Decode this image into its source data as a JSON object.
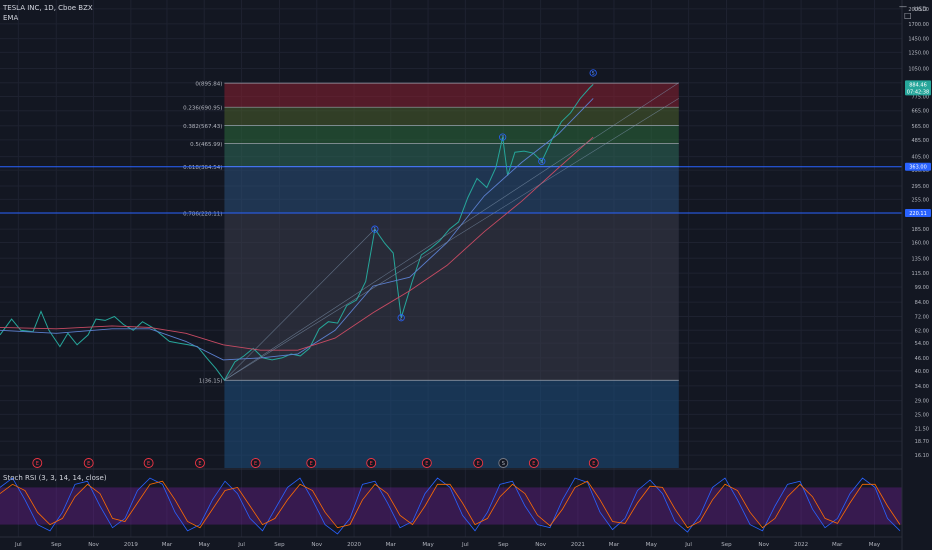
{
  "header": {
    "symbol_line": "TESLA INC, 1D, Cboe BZX",
    "indicator": "EMA",
    "currency": "USD",
    "minimize": "—",
    "maximize": "□"
  },
  "stoch": {
    "label": "Stoch RSI (3, 3, 14, 14, close)",
    "ticks": [
      "75.00",
      "50.00",
      "25.00",
      "0.00"
    ],
    "band_upper": 80,
    "band_lower": 20
  },
  "price_axis": {
    "ticks": [
      "2000.00",
      "1700.00",
      "1450.00",
      "1250.00",
      "1050.00",
      "900.00",
      "775.00",
      "665.00",
      "565.00",
      "485.00",
      "405.00",
      "350.00",
      "295.00",
      "255.00",
      "220.00",
      "185.00",
      "160.00",
      "135.00",
      "115.00",
      "99.00",
      "84.00",
      "72.00",
      "62.00",
      "54.00",
      "46.00",
      "40.00",
      "34.00",
      "29.00",
      "25.00",
      "21.50",
      "18.70",
      "16.10"
    ],
    "badges": [
      {
        "text": "884.46",
        "price": 884,
        "color": "#26a69a"
      },
      {
        "text": "07:42:38",
        "price": 820,
        "color": "#26a69a"
      },
      {
        "text": "363.00",
        "price": 363,
        "color": "#2962ff"
      },
      {
        "text": "220.11",
        "price": 220.11,
        "color": "#2962ff"
      }
    ]
  },
  "time_axis": {
    "labels": [
      "Jul",
      "Sep",
      "Nov",
      "2019",
      "Mar",
      "May",
      "Jul",
      "Sep",
      "Nov",
      "2020",
      "Mar",
      "May",
      "Jul",
      "Sep",
      "Nov",
      "2021",
      "Mar",
      "May",
      "Jul",
      "Sep",
      "Nov",
      "2022",
      "Mar",
      "May"
    ]
  },
  "fib": {
    "levels": [
      {
        "label": "0(895.84)",
        "price": 895.84
      },
      {
        "label": "0.236(690.95)",
        "price": 690.95
      },
      {
        "label": "0.382(567.43)",
        "price": 567.43
      },
      {
        "label": "0.5(465.99)",
        "price": 465.99
      },
      {
        "label": "0.618(364.54)",
        "price": 364.54
      },
      {
        "label": "0.786(220.11)",
        "price": 220.11
      },
      {
        "label": "1(36.15)",
        "price": 36.15
      }
    ],
    "start_label": "Jun 2019",
    "end_label": "Jun 2021"
  },
  "waves": [
    {
      "label": "1",
      "date": "2020-02-04",
      "price": 185
    },
    {
      "label": "2",
      "date": "2020-03-18",
      "price": 71
    },
    {
      "label": "3",
      "date": "2020-08-31",
      "price": 500
    },
    {
      "label": "4",
      "date": "2020-11-03",
      "price": 385
    },
    {
      "label": "5",
      "date": "2021-01-26",
      "price": 1000
    }
  ],
  "earnings": {
    "marker": "E",
    "special": "S",
    "dates": [
      "2018-08-01",
      "2018-10-24",
      "2019-01-30",
      "2019-04-24",
      "2019-07-24",
      "2019-10-23",
      "2020-01-29",
      "2020-04-29",
      "2020-07-22",
      "2020-09-01",
      "2020-10-21",
      "2021-01-27"
    ]
  },
  "chart_data": {
    "type": "line",
    "title": "TESLA INC, 1D, Cboe BZX",
    "scale": "log",
    "y_unit": "USD",
    "xlim": [
      "2018-06-01",
      "2022-06-15"
    ],
    "ylim": [
      14,
      2200
    ],
    "series": [
      {
        "name": "TSLA",
        "color": "#26a69a",
        "points": [
          [
            "2018-06-01",
            59
          ],
          [
            "2018-06-20",
            70
          ],
          [
            "2018-07-05",
            62
          ],
          [
            "2018-07-25",
            61
          ],
          [
            "2018-08-07",
            76
          ],
          [
            "2018-08-20",
            62
          ],
          [
            "2018-09-07",
            52
          ],
          [
            "2018-09-20",
            60
          ],
          [
            "2018-10-05",
            53
          ],
          [
            "2018-10-23",
            59
          ],
          [
            "2018-11-05",
            70
          ],
          [
            "2018-11-20",
            69
          ],
          [
            "2018-12-05",
            72
          ],
          [
            "2018-12-20",
            66
          ],
          [
            "2019-01-05",
            62
          ],
          [
            "2019-01-20",
            68
          ],
          [
            "2019-02-05",
            64
          ],
          [
            "2019-02-20",
            59
          ],
          [
            "2019-03-05",
            55
          ],
          [
            "2019-03-20",
            54
          ],
          [
            "2019-04-05",
            53
          ],
          [
            "2019-04-20",
            52
          ],
          [
            "2019-05-05",
            46
          ],
          [
            "2019-05-20",
            41
          ],
          [
            "2019-06-03",
            36.15
          ],
          [
            "2019-06-20",
            44
          ],
          [
            "2019-07-05",
            47
          ],
          [
            "2019-07-20",
            51
          ],
          [
            "2019-08-05",
            46
          ],
          [
            "2019-08-20",
            45
          ],
          [
            "2019-09-05",
            46
          ],
          [
            "2019-09-20",
            48
          ],
          [
            "2019-10-05",
            47
          ],
          [
            "2019-10-20",
            51
          ],
          [
            "2019-11-05",
            63
          ],
          [
            "2019-11-20",
            68
          ],
          [
            "2019-12-05",
            67
          ],
          [
            "2019-12-20",
            81
          ],
          [
            "2020-01-05",
            86
          ],
          [
            "2020-01-20",
            105
          ],
          [
            "2020-02-04",
            185
          ],
          [
            "2020-02-20",
            159
          ],
          [
            "2020-03-05",
            143
          ],
          [
            "2020-03-18",
            71
          ],
          [
            "2020-04-05",
            105
          ],
          [
            "2020-04-20",
            140
          ],
          [
            "2020-05-05",
            150
          ],
          [
            "2020-05-20",
            163
          ],
          [
            "2020-06-05",
            185
          ],
          [
            "2020-06-20",
            200
          ],
          [
            "2020-07-05",
            260
          ],
          [
            "2020-07-20",
            320
          ],
          [
            "2020-08-05",
            290
          ],
          [
            "2020-08-20",
            360
          ],
          [
            "2020-08-31",
            500
          ],
          [
            "2020-09-08",
            330
          ],
          [
            "2020-09-20",
            425
          ],
          [
            "2020-10-05",
            430
          ],
          [
            "2020-10-20",
            420
          ],
          [
            "2020-11-03",
            385
          ],
          [
            "2020-11-20",
            490
          ],
          [
            "2020-12-05",
            590
          ],
          [
            "2020-12-20",
            650
          ],
          [
            "2021-01-05",
            760
          ],
          [
            "2021-01-20",
            850
          ],
          [
            "2021-01-26",
            884
          ]
        ]
      },
      {
        "name": "EMA",
        "color": "#5b7fce",
        "points": [
          [
            "2018-06-01",
            62
          ],
          [
            "2018-09-01",
            60
          ],
          [
            "2018-12-01",
            63
          ],
          [
            "2019-02-01",
            63
          ],
          [
            "2019-04-01",
            55
          ],
          [
            "2019-06-01",
            45
          ],
          [
            "2019-08-01",
            46
          ],
          [
            "2019-10-01",
            48
          ],
          [
            "2019-12-01",
            62
          ],
          [
            "2020-02-01",
            100
          ],
          [
            "2020-04-01",
            110
          ],
          [
            "2020-06-01",
            160
          ],
          [
            "2020-08-01",
            265
          ],
          [
            "2020-10-01",
            380
          ],
          [
            "2020-12-01",
            520
          ],
          [
            "2021-01-26",
            760
          ]
        ]
      },
      {
        "name": "EMA",
        "color": "#c64a62",
        "points": [
          [
            "2018-06-01",
            64
          ],
          [
            "2018-09-01",
            63
          ],
          [
            "2018-12-01",
            65
          ],
          [
            "2019-02-01",
            64
          ],
          [
            "2019-04-01",
            60
          ],
          [
            "2019-06-01",
            53
          ],
          [
            "2019-08-01",
            50
          ],
          [
            "2019-10-01",
            50
          ],
          [
            "2019-12-01",
            57
          ],
          [
            "2020-02-01",
            75
          ],
          [
            "2020-04-01",
            95
          ],
          [
            "2020-06-01",
            125
          ],
          [
            "2020-08-01",
            180
          ],
          [
            "2020-10-01",
            250
          ],
          [
            "2020-12-01",
            360
          ],
          [
            "2021-01-26",
            500
          ]
        ]
      }
    ],
    "stoch_series": [
      {
        "name": "K",
        "color": "#2962ff",
        "values": [
          80,
          95,
          60,
          20,
          10,
          40,
          85,
          90,
          50,
          15,
          30,
          75,
          95,
          85,
          40,
          10,
          20,
          60,
          90,
          70,
          30,
          10,
          45,
          80,
          95,
          60,
          20,
          5,
          30,
          85,
          90,
          55,
          15,
          25,
          70,
          95,
          80,
          35,
          10,
          40,
          85,
          90,
          50,
          20,
          15,
          60,
          95,
          88,
          40,
          12,
          30,
          75,
          92,
          70,
          25,
          8,
          35,
          80,
          95,
          60,
          20,
          10,
          50,
          85,
          90,
          45,
          15,
          30,
          70,
          95,
          80,
          30,
          10
        ]
      },
      {
        "name": "D",
        "color": "#ff6d00",
        "values": [
          70,
          85,
          75,
          40,
          20,
          30,
          65,
          85,
          70,
          30,
          25,
          55,
          85,
          90,
          60,
          25,
          15,
          45,
          75,
          80,
          50,
          20,
          30,
          60,
          85,
          75,
          40,
          15,
          20,
          60,
          85,
          70,
          35,
          20,
          50,
          85,
          85,
          55,
          20,
          30,
          65,
          85,
          70,
          35,
          18,
          45,
          80,
          90,
          60,
          25,
          22,
          55,
          82,
          80,
          45,
          15,
          25,
          60,
          85,
          75,
          40,
          15,
          30,
          65,
          85,
          65,
          30,
          22,
          55,
          85,
          85,
          50,
          20
        ]
      }
    ]
  }
}
